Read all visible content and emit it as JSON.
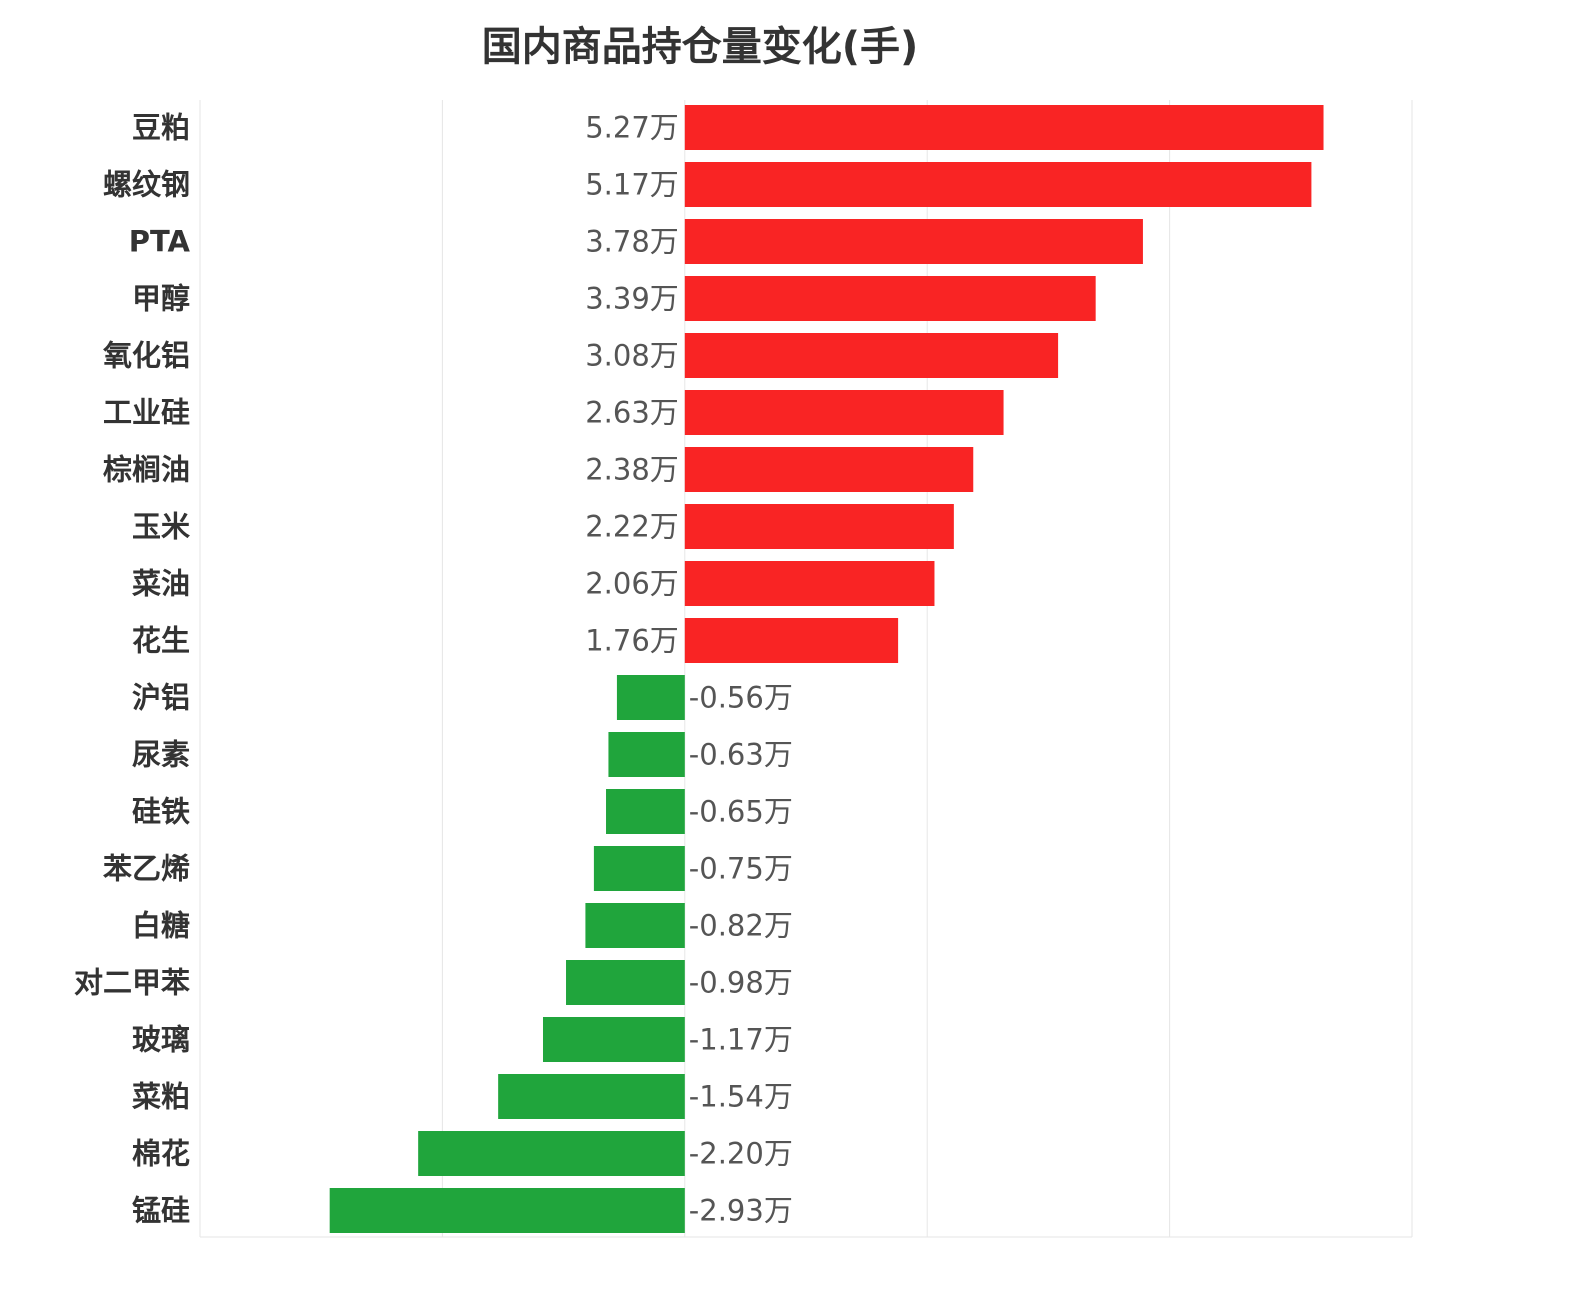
{
  "chart_data": {
    "type": "bar",
    "orientation": "horizontal",
    "title": "国内商品持仓量变化(手)",
    "xlabel": "",
    "ylabel": "",
    "grid": true,
    "categories": [
      "豆粕",
      "螺纹钢",
      "PTA",
      "甲醇",
      "氧化铝",
      "工业硅",
      "棕榈油",
      "玉米",
      "菜油",
      "花生",
      "沪铝",
      "尿素",
      "硅铁",
      "苯乙烯",
      "白糖",
      "对二甲苯",
      "玻璃",
      "菜粕",
      "棉花",
      "锰硅"
    ],
    "values": [
      52700,
      51700,
      37800,
      33900,
      30800,
      26300,
      23800,
      22200,
      20600,
      17600,
      -5600,
      -6300,
      -6500,
      -7500,
      -8200,
      -9800,
      -11700,
      -15400,
      -22000,
      -29300
    ],
    "value_labels": [
      "5.27万",
      "5.17万",
      "3.78万",
      "3.39万",
      "3.08万",
      "2.63万",
      "2.38万",
      "2.22万",
      "2.06万",
      "1.76万",
      "-0.56万",
      "-0.63万",
      "-0.65万",
      "-0.75万",
      "-0.82万",
      "-0.98万",
      "-1.17万",
      "-1.54万",
      "-2.20万",
      "-2.93万"
    ],
    "xlim": [
      -40000,
      60000
    ],
    "colors": {
      "positive": "#f92424",
      "negative": "#20a53c",
      "grid": "#e6e6e6"
    }
  }
}
